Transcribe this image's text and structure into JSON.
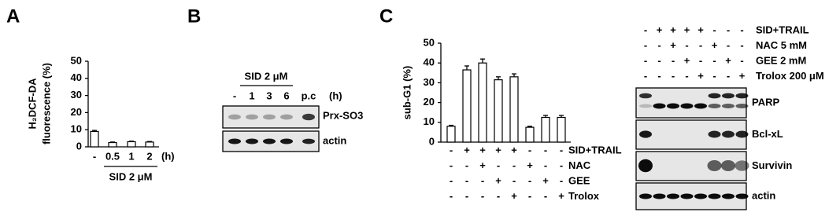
{
  "panel_labels": [
    "A",
    "B",
    "C"
  ],
  "chart_data": [
    {
      "type": "bar",
      "ylabel": [
        "H₂DCF-DA",
        "fluorescence (%)"
      ],
      "categories": [
        "-",
        "0.5",
        "1",
        "2"
      ],
      "unit": "(h)",
      "xlabel": "SID 2 μM",
      "values": [
        9,
        2.5,
        3,
        2.8
      ],
      "errors": [
        0.6,
        0.3,
        0.3,
        0.3
      ],
      "ylim": [
        0,
        50
      ],
      "yticks": [
        0,
        10,
        20,
        30,
        40,
        50
      ],
      "color": "#ffffff"
    },
    {
      "type": "bar",
      "ylabel": [
        "sub-G1 (%)"
      ],
      "values": [
        8,
        36.5,
        40,
        31.5,
        33,
        7.5,
        12.5,
        12.5
      ],
      "errors": [
        0.5,
        2,
        2,
        1.5,
        1.5,
        0.5,
        1,
        1
      ],
      "ylim": [
        0,
        50
      ],
      "yticks": [
        0,
        10,
        20,
        30,
        40,
        50
      ],
      "color": "#ffffff",
      "conditions": [
        {
          "label": "SID+TRAIL",
          "signs": [
            "-",
            "+",
            "+",
            "+",
            "+",
            "-",
            "-",
            "-"
          ]
        },
        {
          "label": "NAC",
          "signs": [
            "-",
            "-",
            "+",
            "-",
            "-",
            "+",
            "-",
            "-"
          ]
        },
        {
          "label": "GEE",
          "signs": [
            "-",
            "-",
            "-",
            "+",
            "-",
            "-",
            "+",
            "-"
          ]
        },
        {
          "label": "Trolox",
          "signs": [
            "-",
            "-",
            "-",
            "-",
            "+",
            "-",
            "-",
            "+"
          ]
        }
      ]
    }
  ],
  "blot_b": {
    "treatment": "SID 2 μM",
    "lanes": [
      "-",
      "1",
      "3",
      "6",
      "p.c"
    ],
    "unit": "(h)",
    "rows": [
      "Prx-SO3",
      "actin"
    ]
  },
  "blot_c": {
    "conditions": [
      {
        "label": "SID+TRAIL",
        "signs": [
          "-",
          "+",
          "+",
          "+",
          "+",
          "-",
          "-",
          "-"
        ]
      },
      {
        "label": "NAC 5 mM",
        "signs": [
          "-",
          "-",
          "+",
          "-",
          "-",
          "+",
          "-",
          "-"
        ]
      },
      {
        "label": "GEE 2 mM",
        "signs": [
          "-",
          "-",
          "-",
          "+",
          "-",
          "-",
          "+",
          "-"
        ]
      },
      {
        "label": "Trolox 200 μM",
        "signs": [
          "-",
          "-",
          "-",
          "-",
          "+",
          "-",
          "-",
          "+"
        ]
      }
    ],
    "rows": [
      "PARP",
      "Bcl-xL",
      "Survivin",
      "actin"
    ]
  }
}
